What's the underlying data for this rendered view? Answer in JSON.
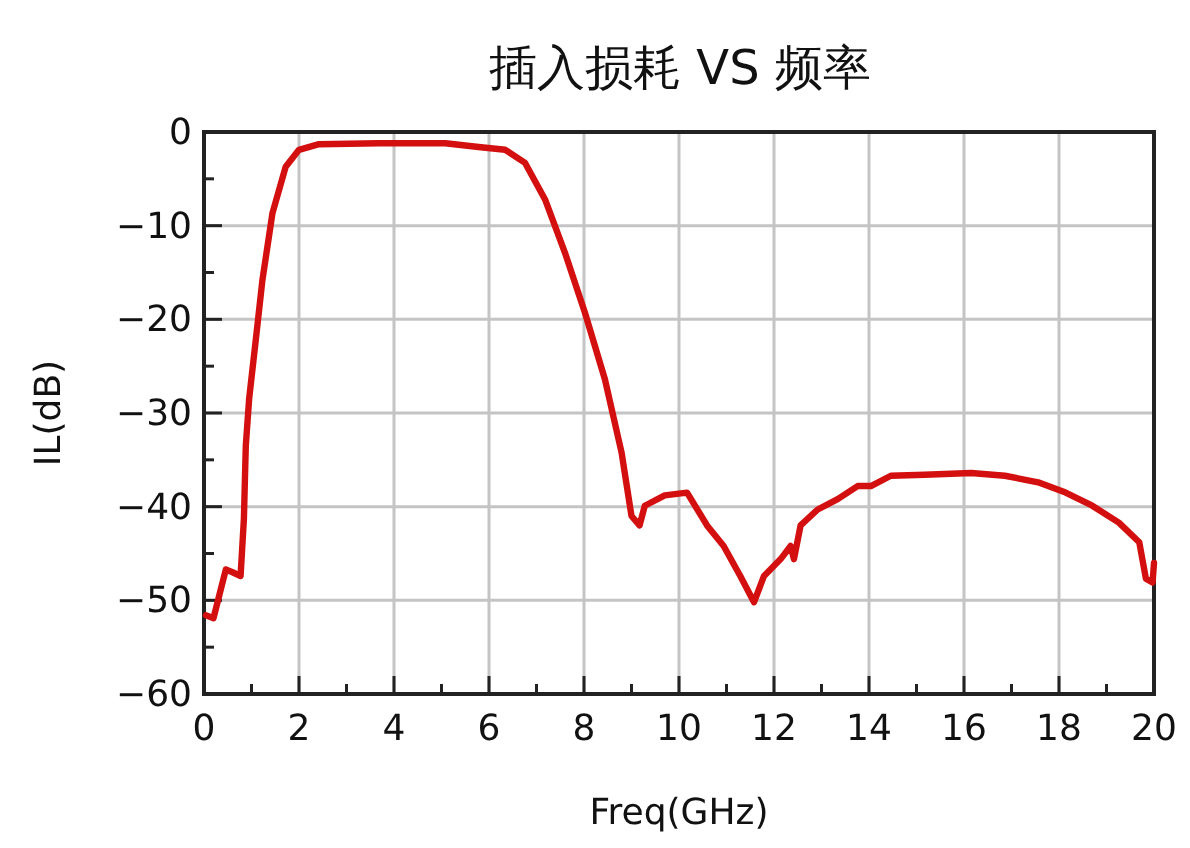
{
  "chart_data": {
    "type": "line",
    "title": "插入损耗 VS 频率",
    "xlabel": "Freq(GHz)",
    "ylabel": "IL(dB)",
    "xlim": [
      0,
      20
    ],
    "ylim": [
      -60,
      0
    ],
    "xticks": [
      0,
      {
        "value": 1,
        "label": null
      },
      2,
      {
        "value": 3,
        "label": null
      },
      4,
      {
        "value": 5,
        "label": null
      },
      6,
      {
        "value": 7,
        "label": null
      },
      8,
      {
        "value": 9,
        "label": null
      },
      10,
      {
        "value": 11,
        "label": null
      },
      12,
      {
        "value": 13,
        "label": null
      },
      14,
      {
        "value": 15,
        "label": null
      },
      16,
      {
        "value": 17,
        "label": null
      },
      18,
      {
        "value": 19,
        "label": null
      },
      20
    ],
    "yticks": [
      -60,
      {
        "value": -55,
        "label": null
      },
      -50,
      {
        "value": -45,
        "label": null
      },
      -40,
      {
        "value": -35,
        "label": null
      },
      -30,
      {
        "value": -25,
        "label": null
      },
      -20,
      {
        "value": -15,
        "label": null
      },
      -10,
      {
        "value": -5,
        "label": null
      },
      0
    ],
    "grid": true,
    "marker": "none",
    "line_style": "solid",
    "x": [
      0.04,
      0.2,
      0.32,
      0.46,
      0.6,
      0.77,
      0.84,
      0.88,
      0.95,
      1.09,
      1.23,
      1.44,
      1.72,
      2.0,
      2.42,
      3.68,
      5.08,
      5.78,
      6.34,
      6.76,
      7.18,
      7.6,
      8.02,
      8.44,
      8.79,
      9.0,
      9.17,
      9.28,
      9.7,
      10.17,
      10.59,
      10.94,
      11.29,
      11.58,
      11.79,
      12.14,
      12.35,
      12.42,
      12.56,
      12.92,
      13.34,
      13.76,
      14.04,
      14.46,
      15.17,
      16.15,
      16.86,
      17.56,
      18.14,
      18.7,
      19.26,
      19.69,
      19.83,
      19.97,
      20.0
    ],
    "series": [
      {
        "color": "#d40f0f",
        "values": [
          -51.6,
          -51.9,
          -49.5,
          -46.7,
          -47,
          -47.4,
          -41.3,
          -33.5,
          -28.5,
          -22.2,
          -15.8,
          -8.7,
          -3.7,
          -1.9,
          -1.3,
          -1.2,
          -1.2,
          -1.6,
          -1.9,
          -3.3,
          -7.2,
          -12.9,
          -19.3,
          -26.4,
          -34.2,
          -41,
          -42,
          -39.9,
          -38.8,
          -38.5,
          -42,
          -44.2,
          -47.4,
          -50.2,
          -47.4,
          -45.6,
          -44.2,
          -45.6,
          -42,
          -40.3,
          -39.2,
          -37.8,
          -37.8,
          -36.7,
          -36.6,
          -36.4,
          -36.7,
          -37.4,
          -38.5,
          -39.9,
          -41.7,
          -43.8,
          -47.7,
          -48.1,
          -46
        ]
      }
    ]
  }
}
